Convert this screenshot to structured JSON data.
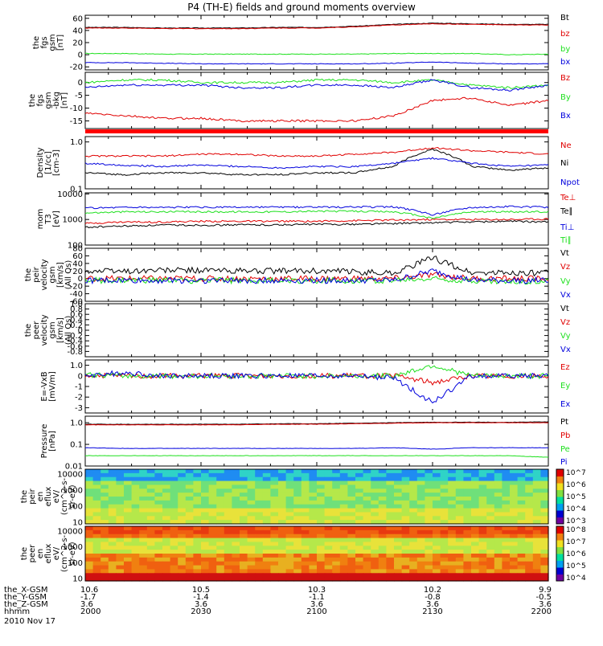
{
  "title": "P4 (TH-E) fields and ground moments overview",
  "date_label": "2010 Nov 17",
  "colors": {
    "black": "#000000",
    "red": "#e00000",
    "green": "#1ee01e",
    "blue": "#0000dd"
  },
  "chart_data": [
    {
      "type": "line",
      "panel": "fgs-gsm",
      "ylabel": [
        "the",
        "fgs",
        "gsm",
        "[nT]"
      ],
      "yticks": [
        -20,
        0,
        20,
        40,
        60
      ],
      "ylim": [
        -25,
        65
      ],
      "series": [
        {
          "name": "Bt",
          "color": "black",
          "values": [
            45,
            45,
            44,
            44,
            44,
            45,
            45,
            47,
            50,
            52,
            51,
            50,
            50
          ]
        },
        {
          "name": "bz",
          "color": "red",
          "values": [
            44,
            44,
            43,
            43,
            43,
            44,
            44,
            46,
            49,
            51,
            50,
            49,
            49
          ]
        },
        {
          "name": "by",
          "color": "green",
          "values": [
            2,
            2,
            1,
            1,
            1,
            1,
            1,
            1,
            2,
            2,
            2,
            0,
            1
          ]
        },
        {
          "name": "bx",
          "color": "blue",
          "values": [
            -13,
            -13,
            -14,
            -15,
            -15,
            -15,
            -15,
            -15,
            -14,
            -12,
            -14,
            -15,
            -15
          ]
        }
      ]
    },
    {
      "type": "line",
      "panel": "fgs-gsm-detrended",
      "ylabel": [
        "the",
        "fgs",
        "gsm",
        "-bkg",
        "[nT]"
      ],
      "yticks": [
        -15,
        -10,
        -5,
        0
      ],
      "ylim": [
        -18,
        4
      ],
      "series": [
        {
          "name": "Bz",
          "color": "red",
          "values": [
            -12,
            -13,
            -14,
            -14,
            -15,
            -15,
            -15,
            -15,
            -13,
            -7,
            -6,
            -9,
            -7
          ]
        },
        {
          "name": "By",
          "color": "green",
          "values": [
            0,
            1,
            1,
            0,
            0,
            0,
            1,
            1,
            0,
            1,
            -1,
            -2,
            -1
          ]
        },
        {
          "name": "Bx",
          "color": "blue",
          "values": [
            -2,
            -1,
            -1,
            -1,
            -2,
            -2,
            -1,
            -1,
            -2,
            1,
            -2,
            -3,
            -1
          ]
        }
      ]
    },
    {
      "type": "line",
      "panel": "density",
      "yscale": "log",
      "ylabel": [
        "Density",
        "[1/cc]",
        "[cm-3]"
      ],
      "yticks": [
        0.1,
        1.0
      ],
      "ylim": [
        0.1,
        1.3
      ],
      "series": [
        {
          "name": "Ne",
          "color": "red",
          "values": [
            0.5,
            0.5,
            0.5,
            0.55,
            0.55,
            0.5,
            0.5,
            0.55,
            0.6,
            0.75,
            0.65,
            0.6,
            0.55
          ]
        },
        {
          "name": "Ni",
          "color": "black",
          "values": [
            0.22,
            0.2,
            0.22,
            0.22,
            0.2,
            0.2,
            0.22,
            0.22,
            0.3,
            0.7,
            0.3,
            0.25,
            0.28
          ]
        },
        {
          "name": "Npot",
          "color": "blue",
          "values": [
            0.35,
            0.32,
            0.3,
            0.32,
            0.3,
            0.28,
            0.3,
            0.3,
            0.35,
            0.45,
            0.35,
            0.3,
            0.32
          ]
        }
      ]
    },
    {
      "type": "line",
      "panel": "temperature",
      "yscale": "log",
      "ylabel": [
        "mom",
        "T3",
        "[eV]"
      ],
      "yticks": [
        100,
        1000,
        10000
      ],
      "ylim": [
        100,
        11000
      ],
      "series": [
        {
          "name": "Te⊥",
          "color": "red",
          "values": [
            700,
            800,
            800,
            850,
            850,
            850,
            850,
            900,
            950,
            1000,
            1000,
            1000,
            1050
          ]
        },
        {
          "name": "Te∥",
          "color": "black",
          "values": [
            500,
            550,
            600,
            600,
            620,
            620,
            650,
            650,
            700,
            750,
            800,
            850,
            800
          ]
        },
        {
          "name": "Ti⊥",
          "color": "blue",
          "values": [
            2800,
            3000,
            3000,
            3000,
            3000,
            3000,
            3000,
            3100,
            3100,
            1500,
            3000,
            3200,
            3000
          ]
        },
        {
          "name": "Ti∥",
          "color": "green",
          "values": [
            1800,
            2000,
            2000,
            2000,
            2000,
            2000,
            2100,
            2100,
            2000,
            1100,
            2000,
            2000,
            2000
          ]
        }
      ]
    },
    {
      "type": "line",
      "panel": "peir-velocity",
      "ylabel": [
        "the",
        "peir",
        "velocity",
        "gsm",
        "[km/s]",
        "(All Qs)"
      ],
      "yticks": [
        -60,
        -40,
        -20,
        0,
        20,
        40,
        60,
        80
      ],
      "ylim": [
        -60,
        80
      ],
      "series": [
        {
          "name": "Vt",
          "color": "black",
          "values": [
            20,
            20,
            22,
            22,
            20,
            20,
            20,
            18,
            15,
            55,
            15,
            15,
            15
          ]
        },
        {
          "name": "Vz",
          "color": "red",
          "values": [
            0,
            0,
            0,
            0,
            0,
            0,
            0,
            0,
            0,
            10,
            0,
            0,
            0
          ]
        },
        {
          "name": "Vy",
          "color": "green",
          "values": [
            -5,
            -5,
            -5,
            -5,
            -5,
            -5,
            -5,
            -5,
            -5,
            0,
            -5,
            -10,
            -5
          ]
        },
        {
          "name": "Vx",
          "color": "blue",
          "values": [
            -5,
            -5,
            -5,
            -5,
            -5,
            -5,
            -5,
            -5,
            -5,
            20,
            -5,
            -5,
            -5
          ]
        }
      ]
    },
    {
      "type": "line",
      "panel": "peer-velocity",
      "ylabel": [
        "the",
        "peer",
        "velocity",
        "gsm",
        "[km/s]",
        "(All Qs)"
      ],
      "yticks": [
        -0.8,
        -0.6,
        -0.4,
        -0.2,
        0.0,
        0.2,
        0.4,
        0.6,
        0.8,
        1.0
      ],
      "ylim": [
        -1.0,
        1.0
      ],
      "series": [
        {
          "name": "Vt",
          "color": "black",
          "values": []
        },
        {
          "name": "Vz",
          "color": "red",
          "values": []
        },
        {
          "name": "Vy",
          "color": "green",
          "values": []
        },
        {
          "name": "Vx",
          "color": "blue",
          "values": []
        }
      ]
    },
    {
      "type": "line",
      "panel": "e-field",
      "ylabel": [
        "E=-VxB",
        "[mV/m]"
      ],
      "yticks": [
        -3,
        -2,
        -1,
        0,
        1
      ],
      "ylim": [
        -3.5,
        1.5
      ],
      "series": [
        {
          "name": "Ez",
          "color": "red",
          "values": [
            0,
            0,
            0,
            0,
            0,
            0,
            0,
            0,
            0,
            -0.6,
            0,
            0,
            0
          ]
        },
        {
          "name": "Ey",
          "color": "green",
          "values": [
            0.1,
            0,
            0,
            0,
            0,
            0,
            0,
            0,
            0,
            1,
            0,
            0,
            0
          ]
        },
        {
          "name": "Ex",
          "color": "blue",
          "values": [
            0,
            0.3,
            0,
            0,
            0,
            0,
            0,
            0,
            -0.2,
            -2.5,
            0,
            0,
            0
          ]
        }
      ]
    },
    {
      "type": "line",
      "panel": "pressure",
      "yscale": "log",
      "ylabel": [
        "Pressure",
        "[nPa]"
      ],
      "yticks": [
        0.01,
        0.1,
        1.0
      ],
      "ylim": [
        0.01,
        2
      ],
      "series": [
        {
          "name": "Pt",
          "color": "black",
          "values": [
            0.85,
            0.85,
            0.85,
            0.85,
            0.85,
            0.9,
            0.9,
            0.95,
            1.0,
            1.05,
            1.05,
            1.05,
            1.1
          ]
        },
        {
          "name": "Pb",
          "color": "red",
          "values": [
            0.8,
            0.8,
            0.8,
            0.8,
            0.8,
            0.85,
            0.85,
            0.9,
            0.95,
            1.0,
            1.0,
            1.0,
            1.0
          ]
        },
        {
          "name": "Pe",
          "color": "green",
          "values": [
            0.03,
            0.03,
            0.03,
            0.03,
            0.03,
            0.03,
            0.03,
            0.03,
            0.03,
            0.03,
            0.03,
            0.03,
            0.025
          ]
        },
        {
          "name": "Pi",
          "color": "blue",
          "values": [
            0.07,
            0.065,
            0.065,
            0.065,
            0.065,
            0.065,
            0.065,
            0.065,
            0.07,
            0.06,
            0.07,
            0.07,
            0.07
          ]
        }
      ]
    },
    {
      "type": "heatmap",
      "panel": "peir-spectrogram",
      "yscale": "log",
      "ylabel": [
        "the",
        "peir",
        "en",
        "eflux",
        "eV/",
        "(cm^2-s-",
        "sr-eV)"
      ],
      "yticks": [
        10,
        100,
        1000,
        10000
      ],
      "ylim": [
        8,
        20000
      ],
      "colorbar_ticks": [
        "10^3",
        "10^4",
        "10^5",
        "10^6",
        "10^7"
      ]
    },
    {
      "type": "heatmap",
      "panel": "peer-spectrogram",
      "yscale": "log",
      "ylabel": [
        "the",
        "peer",
        "en",
        "eflux",
        "eV/",
        "(cm^2-s-",
        "sr-eV)"
      ],
      "yticks": [
        10,
        100,
        1000,
        10000
      ],
      "ylim": [
        7,
        20000
      ],
      "colorbar_ticks": [
        "10^4",
        "10^5",
        "10^6",
        "10^7",
        "10^8"
      ]
    }
  ],
  "x_axis": {
    "row_labels": [
      "the_X-GSM",
      "the_Y-GSM",
      "the_Z-GSM",
      "hhmm"
    ],
    "ticks": [
      {
        "values": [
          "10.6",
          "-1.7",
          "3.6",
          "2000"
        ]
      },
      {
        "values": [
          "10.5",
          "-1.4",
          "3.6",
          "2030"
        ]
      },
      {
        "values": [
          "10.3",
          "-1.1",
          "3.6",
          "2100"
        ]
      },
      {
        "values": [
          "10.2",
          "-0.8",
          "3.6",
          "2130"
        ]
      },
      {
        "values": [
          "9.9",
          "-0.5",
          "3.6",
          "2200"
        ]
      }
    ]
  }
}
